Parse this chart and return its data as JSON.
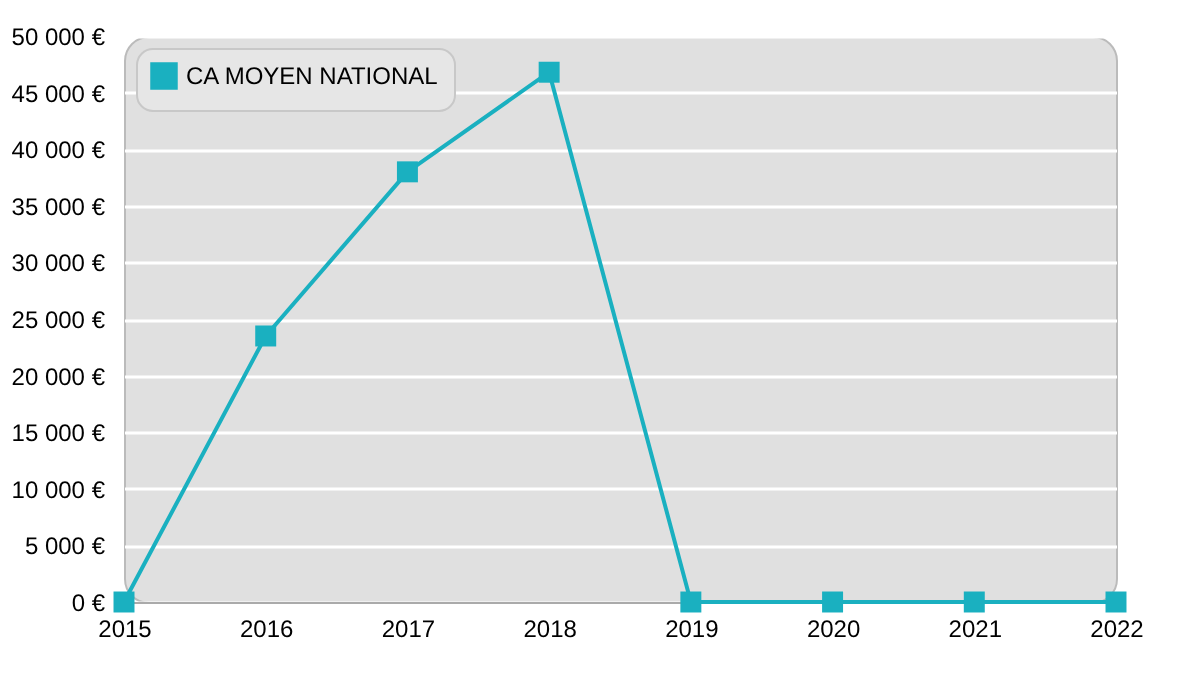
{
  "chart_data": {
    "type": "line",
    "x": [
      2015,
      2016,
      2017,
      2018,
      2019,
      2020,
      2021,
      2022
    ],
    "series": [
      {
        "name": "CA MOYEN NATIONAL",
        "color": "#1ab0c0",
        "values": [
          0,
          23500,
          38000,
          46800,
          0,
          0,
          0,
          0
        ]
      }
    ],
    "xlim": [
      2015,
      2022
    ],
    "xticks": [
      2015,
      2016,
      2017,
      2018,
      2019,
      2020,
      2021,
      2022
    ],
    "ylim": [
      0,
      50000
    ],
    "yticks": [
      {
        "value": 0,
        "label": "0 €"
      },
      {
        "value": 5000,
        "label": "5 000 €"
      },
      {
        "value": 10000,
        "label": "10 000 €"
      },
      {
        "value": 15000,
        "label": "15 000 €"
      },
      {
        "value": 20000,
        "label": "20 000 €"
      },
      {
        "value": 25000,
        "label": "25 000 €"
      },
      {
        "value": 30000,
        "label": "30 000 €"
      },
      {
        "value": 35000,
        "label": "35 000 €"
      },
      {
        "value": 40000,
        "label": "40 000 €"
      },
      {
        "value": 45000,
        "label": "45 000 €"
      },
      {
        "value": 50000,
        "label": "50 000 €"
      }
    ],
    "grid": "y",
    "legend": "top left",
    "marker": "square",
    "line_style": "solid"
  }
}
